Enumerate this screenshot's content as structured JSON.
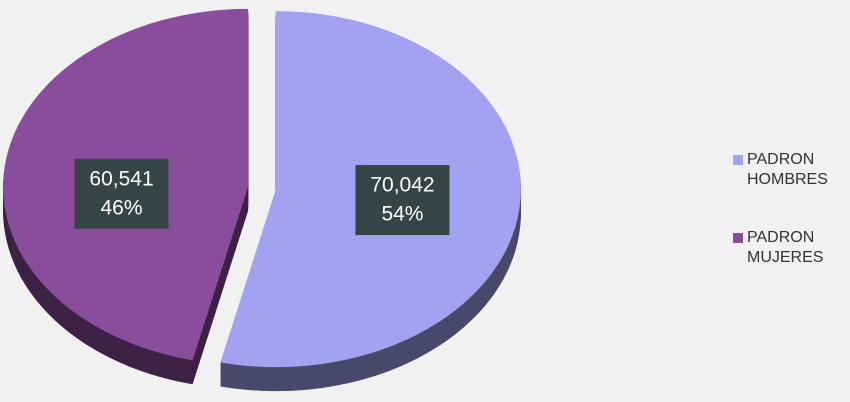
{
  "chart_data": {
    "type": "pie",
    "categories": [
      "PADRON HOMBRES",
      "PADRON MUJERES"
    ],
    "values": [
      70042,
      60541
    ],
    "value_labels": [
      "70,042",
      "60,541"
    ],
    "percents": [
      54,
      46
    ],
    "percent_labels": [
      "54%",
      "46%"
    ],
    "colors": [
      "#a2a2f0",
      "#8a4c9c"
    ],
    "legend": "right"
  }
}
